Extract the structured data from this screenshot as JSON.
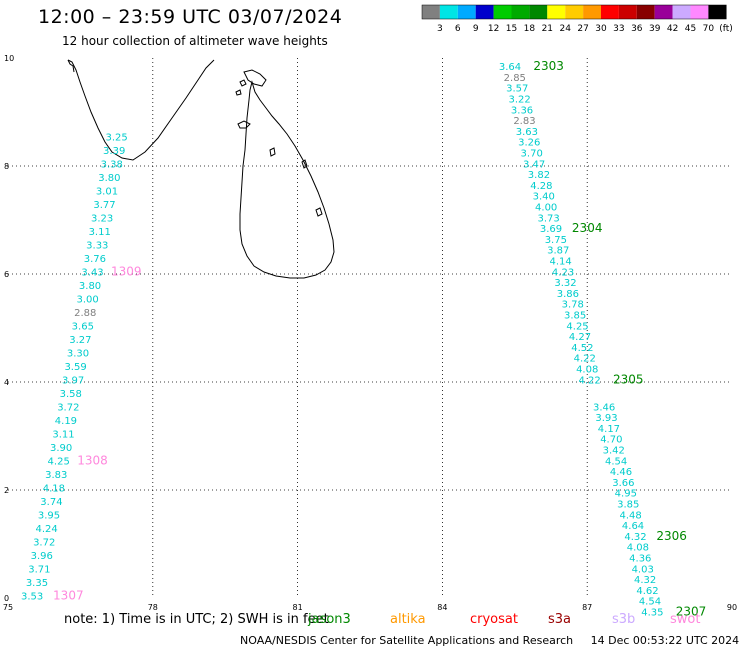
{
  "header": {
    "title": "12:00 – 23:59 UTC 03/07/2024",
    "subtitle": "12 hour collection of altimeter wave heights"
  },
  "colorbar": {
    "colors": [
      "#808080",
      "#00e5e5",
      "#00aaff",
      "#0000cc",
      "#00cc00",
      "#00aa00",
      "#008800",
      "#ffff00",
      "#ffcc00",
      "#ff9900",
      "#ff0000",
      "#cc0000",
      "#880000",
      "#990099",
      "#ccaaff",
      "#ff88ff",
      "#000000"
    ],
    "labels": [
      "3",
      "6",
      "9",
      "12",
      "15",
      "18",
      "21",
      "24",
      "27",
      "30",
      "33",
      "36",
      "39",
      "42",
      "45",
      "70"
    ],
    "unit": "(ft)"
  },
  "map": {
    "lon_range": [
      75,
      90
    ],
    "lat_range": [
      0,
      10
    ],
    "x_ticks": [
      "75",
      "78",
      "81",
      "84",
      "87",
      "90"
    ],
    "y_ticks": [
      "0",
      "2",
      "4",
      "6",
      "8",
      "10"
    ],
    "grid": "dotted",
    "land_outline_color": "#000000",
    "tracks": [
      {
        "satellite": "jason3",
        "color": "#00cccc",
        "points": [
          {
            "lat": 0.05,
            "lon": 75.5,
            "swh": "3.53"
          },
          {
            "lat": 0.3,
            "lon": 75.6,
            "swh": "3.35"
          },
          {
            "lat": 0.55,
            "lon": 75.65,
            "swh": "3.71"
          },
          {
            "lat": 0.8,
            "lon": 75.7,
            "swh": "3.96"
          },
          {
            "lat": 1.05,
            "lon": 75.75,
            "swh": "3.72"
          },
          {
            "lat": 1.3,
            "lon": 75.8,
            "swh": "4.24"
          },
          {
            "lat": 1.55,
            "lon": 75.85,
            "swh": "3.95"
          },
          {
            "lat": 1.8,
            "lon": 75.9,
            "swh": "3.74"
          },
          {
            "lat": 2.05,
            "lon": 75.95,
            "swh": "4.18"
          },
          {
            "lat": 2.3,
            "lon": 76.0,
            "swh": "3.83"
          },
          {
            "lat": 2.55,
            "lon": 76.05,
            "swh": "4.25"
          },
          {
            "lat": 2.8,
            "lon": 76.1,
            "swh": "3.90"
          },
          {
            "lat": 3.05,
            "lon": 76.15,
            "swh": "3.11"
          },
          {
            "lat": 3.3,
            "lon": 76.2,
            "swh": "4.19"
          },
          {
            "lat": 3.55,
            "lon": 76.25,
            "swh": "3.72"
          },
          {
            "lat": 3.8,
            "lon": 76.3,
            "swh": "3.58"
          },
          {
            "lat": 4.05,
            "lon": 76.35,
            "swh": "3.97"
          },
          {
            "lat": 4.3,
            "lon": 76.4,
            "swh": "3.59"
          },
          {
            "lat": 4.55,
            "lon": 76.45,
            "swh": "3.30"
          },
          {
            "lat": 4.8,
            "lon": 76.5,
            "swh": "3.27"
          },
          {
            "lat": 5.05,
            "lon": 76.55,
            "swh": "3.65"
          },
          {
            "lat": 5.3,
            "lon": 76.6,
            "swh": "2.88"
          },
          {
            "lat": 5.55,
            "lon": 76.65,
            "swh": "3.00"
          },
          {
            "lat": 5.8,
            "lon": 76.7,
            "swh": "3.80"
          },
          {
            "lat": 6.05,
            "lon": 76.75,
            "swh": "3.43"
          },
          {
            "lat": 6.3,
            "lon": 76.8,
            "swh": "3.76"
          },
          {
            "lat": 6.55,
            "lon": 76.85,
            "swh": "3.33"
          },
          {
            "lat": 6.8,
            "lon": 76.9,
            "swh": "3.11"
          },
          {
            "lat": 7.05,
            "lon": 76.95,
            "swh": "3.23"
          },
          {
            "lat": 7.3,
            "lon": 77.0,
            "swh": "3.77"
          },
          {
            "lat": 7.55,
            "lon": 77.05,
            "swh": "3.01"
          },
          {
            "lat": 7.8,
            "lon": 77.1,
            "swh": "3.80"
          },
          {
            "lat": 8.05,
            "lon": 77.15,
            "swh": "3.38"
          },
          {
            "lat": 8.3,
            "lon": 77.2,
            "swh": "3.39"
          },
          {
            "lat": 8.55,
            "lon": 77.25,
            "swh": "3.25"
          }
        ]
      },
      {
        "satellite": "jason3",
        "color": "#00cccc",
        "points": [
          {
            "lat": 9.85,
            "lon": 85.4,
            "swh": "3.64"
          },
          {
            "lat": 9.65,
            "lon": 85.5,
            "swh": "2.85"
          },
          {
            "lat": 9.45,
            "lon": 85.55,
            "swh": "3.57"
          },
          {
            "lat": 9.25,
            "lon": 85.6,
            "swh": "3.22"
          },
          {
            "lat": 9.05,
            "lon": 85.65,
            "swh": "3.36"
          },
          {
            "lat": 8.85,
            "lon": 85.7,
            "swh": "2.83"
          },
          {
            "lat": 8.65,
            "lon": 85.75,
            "swh": "3.63"
          },
          {
            "lat": 8.45,
            "lon": 85.8,
            "swh": "3.26"
          },
          {
            "lat": 8.25,
            "lon": 85.85,
            "swh": "3.70"
          },
          {
            "lat": 8.05,
            "lon": 85.9,
            "swh": "3.47"
          },
          {
            "lat": 7.85,
            "lon": 86.0,
            "swh": "3.82"
          },
          {
            "lat": 7.65,
            "lon": 86.05,
            "swh": "4.28"
          },
          {
            "lat": 7.45,
            "lon": 86.1,
            "swh": "3.40"
          },
          {
            "lat": 7.25,
            "lon": 86.15,
            "swh": "4.00"
          },
          {
            "lat": 7.05,
            "lon": 86.2,
            "swh": "3.73"
          },
          {
            "lat": 6.85,
            "lon": 86.25,
            "swh": "3.69"
          },
          {
            "lat": 6.65,
            "lon": 86.35,
            "swh": "3.75"
          },
          {
            "lat": 6.45,
            "lon": 86.4,
            "swh": "3.87"
          },
          {
            "lat": 6.25,
            "lon": 86.45,
            "swh": "4.14"
          },
          {
            "lat": 6.05,
            "lon": 86.5,
            "swh": "4.23"
          },
          {
            "lat": 5.85,
            "lon": 86.55,
            "swh": "3.32"
          },
          {
            "lat": 5.65,
            "lon": 86.6,
            "swh": "3.86"
          },
          {
            "lat": 5.45,
            "lon": 86.7,
            "swh": "3.78"
          },
          {
            "lat": 5.25,
            "lon": 86.75,
            "swh": "3.85"
          },
          {
            "lat": 5.05,
            "lon": 86.8,
            "swh": "4.25"
          },
          {
            "lat": 4.85,
            "lon": 86.85,
            "swh": "4.27"
          },
          {
            "lat": 4.65,
            "lon": 86.9,
            "swh": "4.52"
          },
          {
            "lat": 4.45,
            "lon": 86.95,
            "swh": "4.22"
          },
          {
            "lat": 4.25,
            "lon": 87.0,
            "swh": "4.08"
          },
          {
            "lat": 4.05,
            "lon": 87.05,
            "swh": "4.22"
          },
          {
            "lat": 3.55,
            "lon": 87.35,
            "swh": "3.46"
          },
          {
            "lat": 3.35,
            "lon": 87.4,
            "swh": "3.93"
          },
          {
            "lat": 3.15,
            "lon": 87.45,
            "swh": "4.17"
          },
          {
            "lat": 2.95,
            "lon": 87.5,
            "swh": "4.70"
          },
          {
            "lat": 2.75,
            "lon": 87.55,
            "swh": "3.42"
          },
          {
            "lat": 2.55,
            "lon": 87.6,
            "swh": "4.54"
          },
          {
            "lat": 2.35,
            "lon": 87.7,
            "swh": "4.46"
          },
          {
            "lat": 2.15,
            "lon": 87.75,
            "swh": "3.66"
          },
          {
            "lat": 1.95,
            "lon": 87.8,
            "swh": "4.95"
          },
          {
            "lat": 1.75,
            "lon": 87.85,
            "swh": "3.85"
          },
          {
            "lat": 1.55,
            "lon": 87.9,
            "swh": "4.48"
          },
          {
            "lat": 1.35,
            "lon": 87.95,
            "swh": "4.64"
          },
          {
            "lat": 1.15,
            "lon": 88.0,
            "swh": "4.32"
          },
          {
            "lat": 0.95,
            "lon": 88.05,
            "swh": "4.08"
          },
          {
            "lat": 0.75,
            "lon": 88.1,
            "swh": "4.36"
          },
          {
            "lat": 0.55,
            "lon": 88.15,
            "swh": "4.03"
          },
          {
            "lat": 0.35,
            "lon": 88.2,
            "swh": "4.32"
          },
          {
            "lat": 0.15,
            "lon": 88.25,
            "swh": "4.62"
          },
          {
            "lat": -0.05,
            "lon": 88.3,
            "swh": "4.54"
          },
          {
            "lat": -0.25,
            "lon": 88.35,
            "swh": "4.35"
          }
        ]
      }
    ],
    "pass_labels": [
      {
        "text": "2303",
        "lat": 9.85,
        "lon": 86.2,
        "color": "#008800"
      },
      {
        "text": "2304",
        "lat": 6.85,
        "lon": 87.0,
        "color": "#008800"
      },
      {
        "text": "2305",
        "lat": 4.05,
        "lon": 87.85,
        "color": "#008800"
      },
      {
        "text": "2306",
        "lat": 1.15,
        "lon": 88.75,
        "color": "#008800"
      },
      {
        "text": "2307",
        "lat": -0.25,
        "lon": 89.15,
        "color": "#008800"
      },
      {
        "text": "1309",
        "lat": 6.05,
        "lon": 77.45,
        "color": "#ff88dd"
      },
      {
        "text": "1308",
        "lat": 2.55,
        "lon": 76.75,
        "color": "#ff88dd"
      },
      {
        "text": "1307",
        "lat": 0.05,
        "lon": 76.25,
        "color": "#ff88dd"
      }
    ]
  },
  "legend": {
    "note": "note:  1) Time is in UTC; 2) SWH is in feet",
    "satellites": [
      {
        "name": "jason3",
        "color": "#008800"
      },
      {
        "name": "altika",
        "color": "#ff9900"
      },
      {
        "name": "cryosat",
        "color": "#ff0000"
      },
      {
        "name": "s3a",
        "color": "#990000"
      },
      {
        "name": "s3b",
        "color": "#ccaaff"
      },
      {
        "name": "swot",
        "color": "#ff88dd"
      }
    ]
  },
  "footer": {
    "credit": "NOAA/NESDIS Center for Satellite Applications and Research",
    "timestamp": "14 Dec 00:53:22 UTC 2024"
  }
}
